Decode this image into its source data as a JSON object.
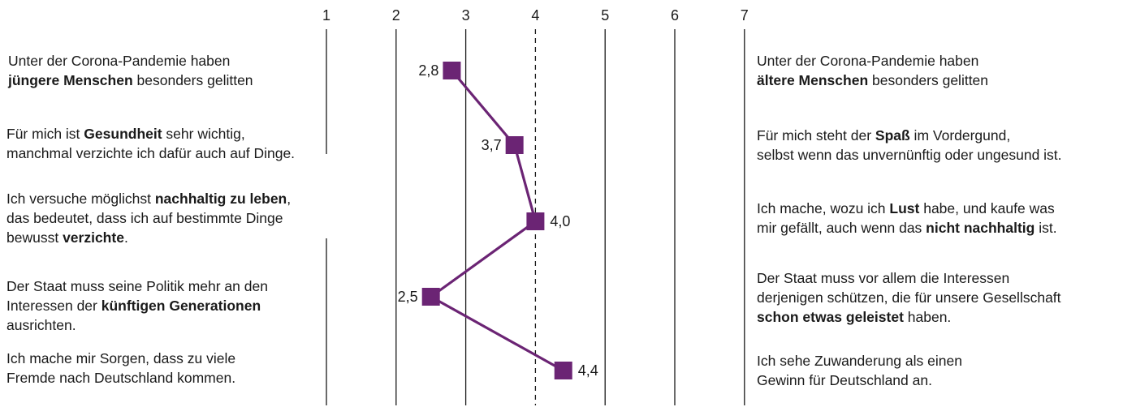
{
  "chart_data": {
    "type": "line",
    "scale": [
      1,
      2,
      3,
      4,
      5,
      6,
      7
    ],
    "midpoint": 4,
    "values": [
      2.8,
      3.7,
      4.0,
      2.5,
      4.4
    ],
    "value_labels": [
      "2,8",
      "3,7",
      "4,0",
      "2,5",
      "4,4"
    ],
    "series_color": "#6b2474",
    "left_statements": [
      [
        [
          {
            "t": "Unter der Corona-Pandemie haben"
          }
        ],
        [
          {
            "t": "jüngere Menschen",
            "b": true
          },
          {
            "t": " besonders gelitten"
          }
        ]
      ],
      [
        [
          {
            "t": "Für mich ist "
          },
          {
            "t": "Gesundheit",
            "b": true
          },
          {
            "t": " sehr wichtig,"
          }
        ],
        [
          {
            "t": "manchmal verzichte ich dafür auch auf Dinge."
          }
        ]
      ],
      [
        [
          {
            "t": "Ich versuche möglichst "
          },
          {
            "t": "nachhaltig zu leben",
            "b": true
          },
          {
            "t": ","
          }
        ],
        [
          {
            "t": "das bedeutet, dass ich auf bestimmte Dinge"
          }
        ],
        [
          {
            "t": "bewusst "
          },
          {
            "t": "verzichte",
            "b": true
          },
          {
            "t": "."
          }
        ]
      ],
      [
        [
          {
            "t": "Der Staat muss seine Politik mehr an den"
          }
        ],
        [
          {
            "t": "Interessen der "
          },
          {
            "t": "künftigen Generationen",
            "b": true
          }
        ],
        [
          {
            "t": "ausrichten."
          }
        ]
      ],
      [
        [
          {
            "t": "Ich mache mir Sorgen, dass zu viele"
          }
        ],
        [
          {
            "t": "Fremde nach Deutschland kommen."
          }
        ]
      ]
    ],
    "right_statements": [
      [
        [
          {
            "t": "Unter der Corona-Pandemie haben"
          }
        ],
        [
          {
            "t": "ältere Menschen",
            "b": true
          },
          {
            "t": " besonders gelitten"
          }
        ]
      ],
      [
        [
          {
            "t": "Für mich steht der "
          },
          {
            "t": "Spaß",
            "b": true
          },
          {
            "t": " im Vordergund,"
          }
        ],
        [
          {
            "t": "selbst wenn das unvernünftig oder ungesund ist."
          }
        ]
      ],
      [
        [
          {
            "t": "Ich mache, wozu ich "
          },
          {
            "t": "Lust",
            "b": true
          },
          {
            "t": " habe, und kaufe was"
          }
        ],
        [
          {
            "t": "mir gefällt, auch wenn das "
          },
          {
            "t": "nicht nachhaltig",
            "b": true
          },
          {
            "t": " ist."
          }
        ]
      ],
      [
        [
          {
            "t": "Der Staat muss vor allem die Interessen"
          }
        ],
        [
          {
            "t": "derjenigen schützen, die für unsere Gesellschaft"
          }
        ],
        [
          {
            "t": "schon etwas geleistet",
            "b": true
          },
          {
            "t": " haben."
          }
        ]
      ],
      [
        [
          {
            "t": "Ich sehe Zuwanderung als einen"
          }
        ],
        [
          {
            "t": "Gewinn für Deutschland an."
          }
        ]
      ]
    ]
  }
}
